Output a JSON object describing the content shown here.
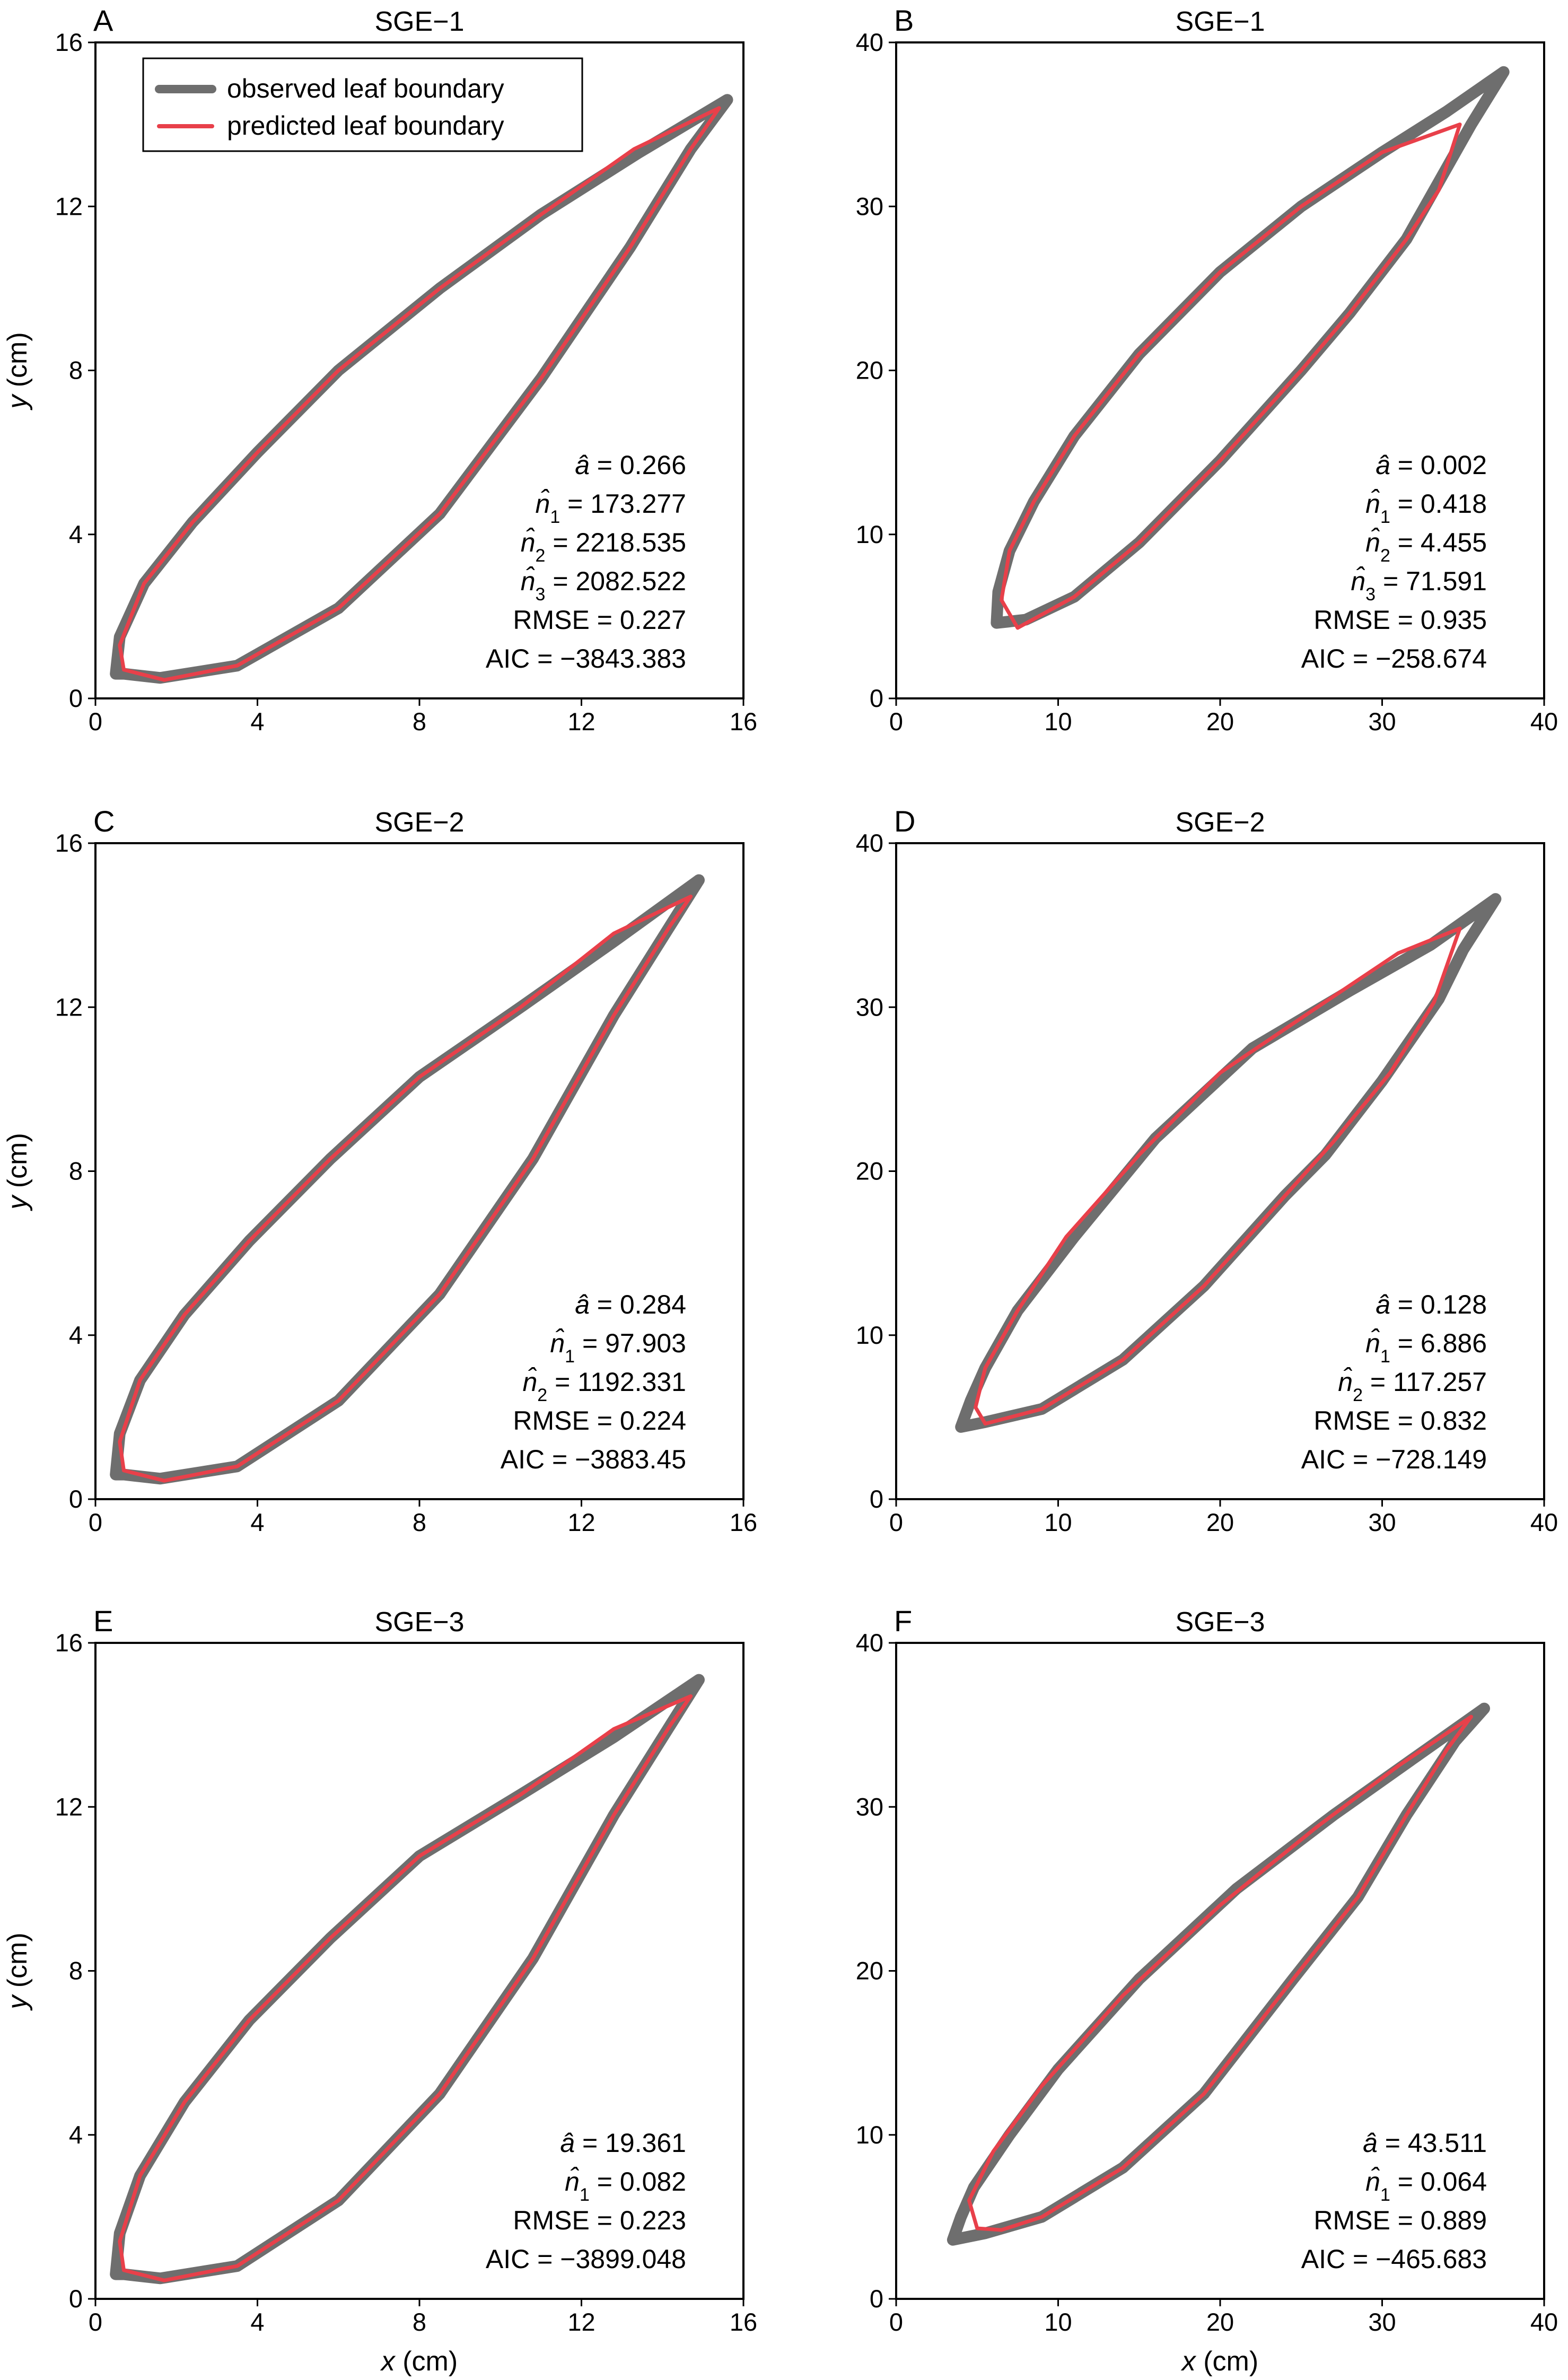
{
  "legend": {
    "observed_label": "observed leaf boundary",
    "predicted_label": "predicted leaf boundary"
  },
  "colors": {
    "observed": "#6e6e6e",
    "predicted": "#e8404a"
  },
  "chart_data": [
    {
      "type": "line",
      "panel": "A",
      "title": "SGE−1",
      "xlabel": "",
      "ylabel": "y (cm)",
      "xlim": [
        0,
        16
      ],
      "ylim": [
        0,
        16
      ],
      "xticks": [
        "0",
        "4",
        "8",
        "12",
        "16"
      ],
      "yticks": [
        "0",
        "4",
        "8",
        "12",
        "16"
      ],
      "legend": true,
      "annotations": [
        {
          "sym": "a",
          "hat": true,
          "sub": "",
          "value": "0.266"
        },
        {
          "sym": "n",
          "hat": true,
          "sub": "1",
          "value": "173.277"
        },
        {
          "sym": "n",
          "hat": true,
          "sub": "2",
          "value": "2218.535"
        },
        {
          "sym": "n",
          "hat": true,
          "sub": "3",
          "value": "2082.522"
        },
        {
          "sym": "RMSE",
          "hat": false,
          "sub": "",
          "value": "0.227"
        },
        {
          "sym": "AIC",
          "hat": false,
          "sub": "",
          "value": "−3843.383"
        }
      ],
      "series": [
        {
          "name": "observed leaf boundary",
          "x": [
            15.6,
            13.4,
            11.0,
            8.5,
            6.0,
            4.0,
            2.4,
            1.2,
            0.6,
            0.5,
            0.7,
            1.6,
            3.5,
            6.0,
            8.5,
            11.0,
            13.2,
            14.7,
            15.6
          ],
          "y": [
            14.6,
            13.3,
            11.8,
            10.0,
            8.0,
            6.0,
            4.3,
            2.8,
            1.5,
            0.6,
            0.6,
            0.5,
            0.8,
            2.2,
            4.5,
            7.8,
            11.0,
            13.4,
            14.6
          ]
        },
        {
          "name": "predicted leaf boundary",
          "x": [
            15.4,
            13.3,
            11.0,
            8.5,
            6.0,
            4.0,
            2.4,
            1.2,
            0.6,
            0.7,
            1.7,
            3.5,
            6.0,
            8.5,
            11.0,
            13.2,
            14.7,
            15.4
          ],
          "y": [
            14.4,
            13.4,
            11.8,
            10.0,
            8.0,
            6.0,
            4.3,
            2.8,
            1.3,
            0.7,
            0.45,
            0.8,
            2.2,
            4.5,
            7.8,
            11.0,
            13.4,
            14.4
          ]
        }
      ]
    },
    {
      "type": "line",
      "panel": "B",
      "title": "SGE−1",
      "xlabel": "",
      "ylabel": "",
      "xlim": [
        0,
        40
      ],
      "ylim": [
        0,
        40
      ],
      "xticks": [
        "0",
        "10",
        "20",
        "30",
        "40"
      ],
      "yticks": [
        "0",
        "10",
        "20",
        "30",
        "40"
      ],
      "legend": false,
      "annotations": [
        {
          "sym": "a",
          "hat": true,
          "sub": "",
          "value": "0.002"
        },
        {
          "sym": "n",
          "hat": true,
          "sub": "1",
          "value": "0.418"
        },
        {
          "sym": "n",
          "hat": true,
          "sub": "2",
          "value": "4.455"
        },
        {
          "sym": "n",
          "hat": true,
          "sub": "3",
          "value": "71.591"
        },
        {
          "sym": "RMSE",
          "hat": false,
          "sub": "",
          "value": "0.935"
        },
        {
          "sym": "AIC",
          "hat": false,
          "sub": "",
          "value": "−258.674"
        }
      ],
      "series": [
        {
          "name": "observed leaf boundary",
          "x": [
            37.5,
            34.0,
            30.0,
            25.0,
            20.0,
            15.0,
            11.0,
            8.5,
            7.0,
            6.3,
            6.2,
            8.0,
            11.0,
            15.0,
            20.0,
            25.0,
            28.0,
            31.5,
            33.5,
            35.5,
            37.5
          ],
          "y": [
            38.2,
            35.8,
            33.3,
            30.0,
            26.0,
            21.0,
            16.0,
            12.0,
            9.0,
            6.5,
            4.6,
            4.8,
            6.2,
            9.5,
            14.5,
            20.0,
            23.5,
            28.0,
            31.5,
            35.0,
            38.2
          ]
        },
        {
          "name": "predicted leaf boundary",
          "x": [
            34.8,
            30.0,
            25.0,
            20.0,
            15.0,
            11.0,
            8.5,
            7.0,
            6.5,
            7.5,
            11.0,
            15.0,
            20.0,
            25.0,
            28.0,
            31.5,
            33.5,
            34.8
          ],
          "y": [
            35.0,
            33.3,
            30.0,
            26.0,
            21.0,
            16.0,
            12.0,
            9.0,
            6.0,
            4.3,
            6.2,
            9.5,
            14.5,
            20.0,
            23.5,
            28.0,
            31.0,
            35.0
          ]
        }
      ]
    },
    {
      "type": "line",
      "panel": "C",
      "title": "SGE−2",
      "xlabel": "",
      "ylabel": "y (cm)",
      "xlim": [
        0,
        16
      ],
      "ylim": [
        0,
        16
      ],
      "xticks": [
        "0",
        "4",
        "8",
        "12",
        "16"
      ],
      "yticks": [
        "0",
        "4",
        "8",
        "12",
        "16"
      ],
      "legend": false,
      "annotations": [
        {
          "sym": "a",
          "hat": true,
          "sub": "",
          "value": "0.284"
        },
        {
          "sym": "n",
          "hat": true,
          "sub": "1",
          "value": "97.903"
        },
        {
          "sym": "n",
          "hat": true,
          "sub": "2",
          "value": "1192.331"
        },
        {
          "sym": "RMSE",
          "hat": false,
          "sub": "",
          "value": "0.224"
        },
        {
          "sym": "AIC",
          "hat": false,
          "sub": "",
          "value": "−3883.45"
        }
      ],
      "series": [
        {
          "name": "observed leaf boundary",
          "x": [
            14.9,
            12.8,
            10.5,
            8.0,
            5.8,
            3.8,
            2.2,
            1.1,
            0.6,
            0.5,
            0.7,
            1.6,
            3.5,
            6.0,
            8.5,
            10.8,
            12.8,
            14.2,
            14.9
          ],
          "y": [
            15.1,
            13.6,
            12.0,
            10.3,
            8.3,
            6.3,
            4.5,
            2.9,
            1.6,
            0.6,
            0.6,
            0.5,
            0.8,
            2.4,
            5.0,
            8.3,
            11.8,
            14.0,
            15.1
          ]
        },
        {
          "name": "predicted leaf boundary",
          "x": [
            14.7,
            12.8,
            10.5,
            8.0,
            5.8,
            3.8,
            2.2,
            1.1,
            0.6,
            0.7,
            1.7,
            3.5,
            6.0,
            8.5,
            10.8,
            12.8,
            14.2,
            14.7
          ],
          "y": [
            14.7,
            13.8,
            12.0,
            10.3,
            8.3,
            6.3,
            4.5,
            2.9,
            1.4,
            0.7,
            0.45,
            0.8,
            2.4,
            5.0,
            8.3,
            11.8,
            14.0,
            14.7
          ]
        }
      ]
    },
    {
      "type": "line",
      "panel": "D",
      "title": "SGE−2",
      "xlabel": "",
      "ylabel": "",
      "xlim": [
        0,
        40
      ],
      "ylim": [
        0,
        40
      ],
      "xticks": [
        "0",
        "10",
        "20",
        "30",
        "40"
      ],
      "yticks": [
        "0",
        "10",
        "20",
        "30",
        "40"
      ],
      "legend": false,
      "annotations": [
        {
          "sym": "a",
          "hat": true,
          "sub": "",
          "value": "0.128"
        },
        {
          "sym": "n",
          "hat": true,
          "sub": "1",
          "value": "6.886"
        },
        {
          "sym": "n",
          "hat": true,
          "sub": "2",
          "value": "117.257"
        },
        {
          "sym": "RMSE",
          "hat": false,
          "sub": "",
          "value": "0.832"
        },
        {
          "sym": "AIC",
          "hat": false,
          "sub": "",
          "value": "−728.149"
        }
      ],
      "series": [
        {
          "name": "observed leaf boundary",
          "x": [
            37.0,
            33.0,
            28.0,
            22.0,
            16.0,
            11.0,
            7.5,
            5.5,
            4.6,
            4.0,
            5.5,
            9.0,
            14.0,
            19.0,
            24.0,
            26.5,
            30.0,
            33.5,
            35.0,
            37.0
          ],
          "y": [
            36.6,
            33.8,
            31.0,
            27.5,
            22.0,
            16.0,
            11.5,
            8.0,
            6.0,
            4.4,
            4.7,
            5.5,
            8.5,
            13.0,
            18.5,
            21.0,
            25.5,
            30.5,
            33.5,
            36.6
          ]
        },
        {
          "name": "predicted leaf boundary",
          "x": [
            34.8,
            31.0,
            26.0,
            20.0,
            15.0,
            10.5,
            7.5,
            5.5,
            4.9,
            5.5,
            9.0,
            14.0,
            19.0,
            24.0,
            27.0,
            30.5,
            33.2,
            34.8
          ],
          "y": [
            34.8,
            33.3,
            30.0,
            26.0,
            21.0,
            16.0,
            11.5,
            8.0,
            5.6,
            4.6,
            5.5,
            8.5,
            13.0,
            18.5,
            21.8,
            26.0,
            30.3,
            34.8
          ]
        }
      ]
    },
    {
      "type": "line",
      "panel": "E",
      "title": "SGE−3",
      "xlabel": "x (cm)",
      "ylabel": "y (cm)",
      "xlim": [
        0,
        16
      ],
      "ylim": [
        0,
        16
      ],
      "xticks": [
        "0",
        "4",
        "8",
        "12",
        "16"
      ],
      "yticks": [
        "0",
        "4",
        "8",
        "12",
        "16"
      ],
      "legend": false,
      "annotations": [
        {
          "sym": "a",
          "hat": true,
          "sub": "",
          "value": "19.361"
        },
        {
          "sym": "n",
          "hat": true,
          "sub": "1",
          "value": "0.082"
        },
        {
          "sym": "RMSE",
          "hat": false,
          "sub": "",
          "value": "0.223"
        },
        {
          "sym": "AIC",
          "hat": false,
          "sub": "",
          "value": "−3899.048"
        }
      ],
      "series": [
        {
          "name": "observed leaf boundary",
          "x": [
            14.9,
            12.8,
            10.5,
            8.0,
            5.8,
            3.8,
            2.2,
            1.1,
            0.6,
            0.5,
            0.7,
            1.6,
            3.5,
            6.0,
            8.5,
            10.8,
            12.8,
            14.2,
            14.9
          ],
          "y": [
            15.1,
            13.7,
            12.3,
            10.8,
            8.8,
            6.8,
            4.8,
            3.0,
            1.6,
            0.6,
            0.6,
            0.5,
            0.8,
            2.4,
            5.0,
            8.3,
            11.8,
            14.0,
            15.1
          ]
        },
        {
          "name": "predicted leaf boundary",
          "x": [
            14.7,
            12.8,
            10.5,
            8.0,
            5.8,
            3.8,
            2.2,
            1.1,
            0.6,
            0.7,
            1.7,
            3.5,
            6.0,
            8.5,
            10.8,
            12.8,
            14.2,
            14.7
          ],
          "y": [
            14.7,
            13.9,
            12.3,
            10.8,
            8.8,
            6.8,
            4.8,
            3.0,
            1.4,
            0.7,
            0.45,
            0.8,
            2.4,
            5.0,
            8.3,
            11.8,
            14.0,
            14.7
          ]
        }
      ]
    },
    {
      "type": "line",
      "panel": "F",
      "title": "SGE−3",
      "xlabel": "x (cm)",
      "ylabel": "",
      "xlim": [
        0,
        40
      ],
      "ylim": [
        0,
        40
      ],
      "xticks": [
        "0",
        "10",
        "20",
        "30",
        "40"
      ],
      "yticks": [
        "0",
        "10",
        "20",
        "30",
        "40"
      ],
      "legend": false,
      "annotations": [
        {
          "sym": "a",
          "hat": true,
          "sub": "",
          "value": "43.511"
        },
        {
          "sym": "n",
          "hat": true,
          "sub": "1",
          "value": "0.064"
        },
        {
          "sym": "RMSE",
          "hat": false,
          "sub": "",
          "value": "0.889"
        },
        {
          "sym": "AIC",
          "hat": false,
          "sub": "",
          "value": "−465.683"
        }
      ],
      "series": [
        {
          "name": "observed leaf boundary",
          "x": [
            36.3,
            32.0,
            27.0,
            21.0,
            15.0,
            10.0,
            7.0,
            4.8,
            4.0,
            3.5,
            5.5,
            9.0,
            14.0,
            19.0,
            24.5,
            28.5,
            31.5,
            34.5,
            36.3
          ],
          "y": [
            36.0,
            33.0,
            29.5,
            25.0,
            19.5,
            14.0,
            10.0,
            6.8,
            5.0,
            3.6,
            4.0,
            5.0,
            8.0,
            12.5,
            19.5,
            24.5,
            29.5,
            34.0,
            36.0
          ]
        },
        {
          "name": "predicted leaf boundary",
          "x": [
            35.5,
            31.0,
            26.0,
            20.0,
            14.0,
            9.0,
            6.0,
            4.5,
            5.0,
            6.5,
            9.0,
            14.0,
            19.0,
            24.5,
            28.5,
            31.5,
            34.0,
            35.5
          ],
          "y": [
            35.5,
            32.5,
            28.8,
            24.0,
            18.5,
            13.0,
            9.0,
            6.0,
            4.3,
            4.2,
            5.0,
            8.0,
            12.5,
            19.5,
            24.5,
            29.5,
            33.5,
            35.5
          ]
        }
      ]
    }
  ]
}
